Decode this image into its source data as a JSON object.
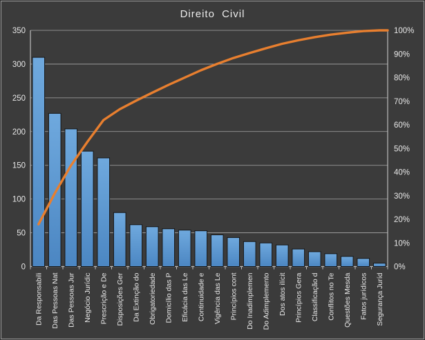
{
  "window": {
    "background_color": "#3b3b3b",
    "frame_border_color": "#a0a0a0"
  },
  "chart_data": {
    "type": "bar",
    "subtype": "pareto-bar-with-cumulative-line",
    "title": "Direito Civil",
    "xlabel": "",
    "ylabel": "",
    "legend": "none",
    "grid": "horizontal",
    "categories": [
      "Da Responsabili",
      "Das Pessoas Nat",
      "Das Pessoas Jur",
      "Negócio Jurídic",
      "Prescrição e De",
      "Disposições Ger",
      "Da Extinção do",
      "Obrigatoriedade",
      "Domicílio das P",
      "Eficácia das Le",
      "Continuidade e",
      "Vigência das Le",
      "Princípios cont",
      "Do Inadimplemen",
      "Do Adimplemento",
      "Dos atos ilícit",
      "Princípios Gera",
      "Classificação d",
      "Conflitos no Te",
      "Questões Mesda",
      "Fatos jurídicos",
      "Segurança Juríd"
    ],
    "bar_values": [
      310,
      227,
      204,
      171,
      161,
      80,
      62,
      59,
      56,
      54,
      53,
      47,
      43,
      37,
      35,
      32,
      26,
      22,
      19,
      15,
      12,
      5
    ],
    "cumulative_pct": [
      17.9,
      31.0,
      42.8,
      52.7,
      62.0,
      66.6,
      70.2,
      73.6,
      76.9,
      80.0,
      83.1,
      85.8,
      88.3,
      90.4,
      92.4,
      94.3,
      95.8,
      97.1,
      98.2,
      99.0,
      99.7,
      100.0
    ],
    "left_axis": {
      "min": 0,
      "max": 350,
      "step": 50,
      "tick_labels": [
        "0",
        "50",
        "100",
        "150",
        "200",
        "250",
        "300",
        "350"
      ]
    },
    "right_axis": {
      "min": 0,
      "max": 100,
      "step": 10,
      "tick_labels": [
        "0%",
        "10%",
        "20%",
        "30%",
        "40%",
        "50%",
        "60%",
        "70%",
        "80%",
        "90%",
        "100%"
      ]
    },
    "colors": {
      "bar_fill_top": "#6fa9de",
      "bar_fill_bottom": "#4b86c2",
      "bar_stroke": "#161616",
      "line": "#e87f2f",
      "gridline": "#a8a8a8",
      "axis": "#bdbdbd",
      "tick_text": "#e8e8e8",
      "title_text": "#ededed",
      "plot_background": "#3b3b3b"
    }
  }
}
